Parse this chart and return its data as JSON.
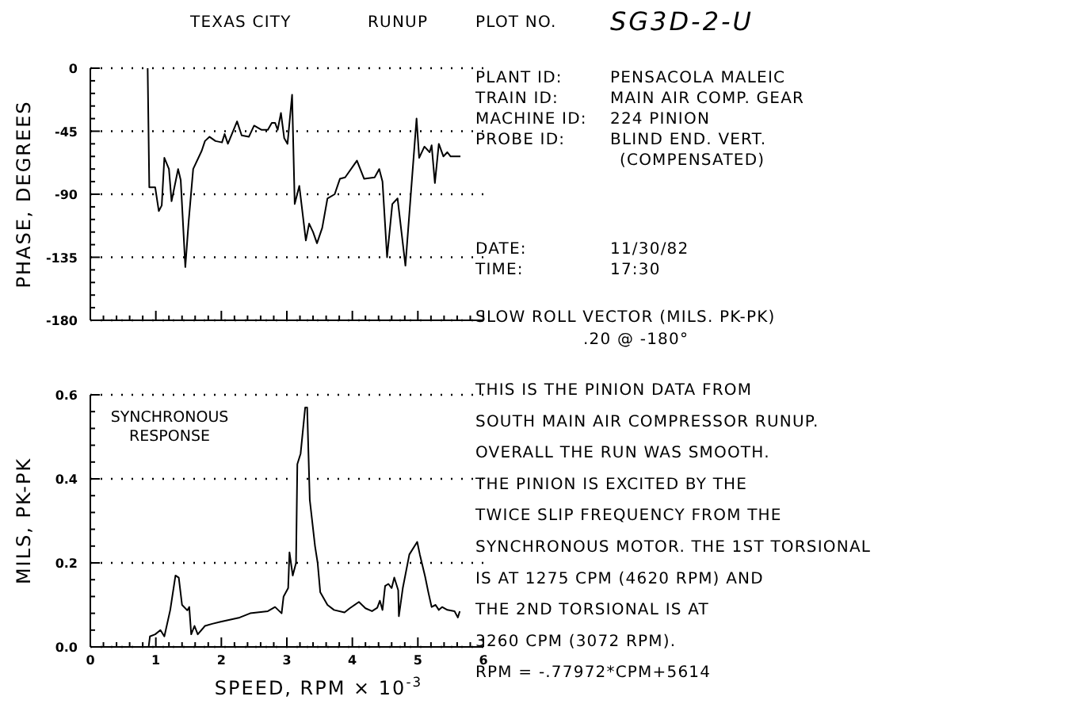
{
  "chart_data": [
    {
      "type": "line",
      "ylabel": "PHASE, DEGREES",
      "xlim": [
        0,
        6
      ],
      "xticks": [
        0,
        1,
        2,
        3,
        4,
        5,
        6
      ],
      "ylim": [
        -180,
        0
      ],
      "yticks": [
        -180,
        -135,
        -90,
        -45,
        0
      ],
      "tick_labels": "y",
      "grid": "y",
      "marker": "none",
      "line_style": "solid",
      "series": [
        {
          "color": "#000000",
          "x": [
            0.875,
            0.9,
            0.99,
            1.045,
            1.09,
            1.13,
            1.2,
            1.24,
            1.34,
            1.38,
            1.45,
            1.5,
            1.57,
            1.7,
            1.75,
            1.82,
            1.91,
            2.01,
            2.05,
            2.1,
            2.24,
            2.31,
            2.42,
            2.5,
            2.61,
            2.71,
            2.77,
            2.82,
            2.86,
            2.91,
            2.96,
            3.01,
            3.08,
            3.12,
            3.19,
            3.29,
            3.34,
            3.4,
            3.46,
            3.54,
            3.62,
            3.73,
            3.81,
            3.89,
            4.07,
            4.18,
            4.34,
            4.41,
            4.46,
            4.53,
            4.61,
            4.69,
            4.81,
            4.98,
            5.02,
            5.1,
            5.18,
            5.21,
            5.26,
            5.32,
            5.39,
            5.45,
            5.5,
            5.65
          ],
          "values": [
            0,
            -85,
            -85,
            -102,
            -98,
            -64,
            -72,
            -95,
            -72,
            -80,
            -142,
            -110,
            -72,
            -59,
            -52,
            -49,
            -52,
            -53,
            -47,
            -54,
            -38,
            -48,
            -49,
            -41,
            -44,
            -44,
            -39,
            -39,
            -44,
            -32,
            -50,
            -54,
            -19,
            -97,
            -84,
            -123,
            -111,
            -117,
            -125,
            -114,
            -93,
            -90,
            -79,
            -78,
            -66,
            -79,
            -78,
            -72,
            -81,
            -135,
            -97,
            -93,
            -141,
            -36,
            -64,
            -56,
            -60,
            -55,
            -82,
            -54,
            -63,
            -60,
            -63,
            -63
          ]
        }
      ]
    },
    {
      "type": "line",
      "ylabel": "MILS, PK-PK",
      "xlabel": "SPEED, RPM × 10$^{-3}$",
      "xlim": [
        0,
        6
      ],
      "xticks": [
        0,
        1,
        2,
        3,
        4,
        5,
        6
      ],
      "ylim": [
        0,
        0.6
      ],
      "yticks": [
        {
          "value": 0,
          "label": "0.0"
        },
        {
          "value": 0.2,
          "label": "0.2"
        },
        {
          "value": 0.4,
          "label": "0.4"
        },
        {
          "value": 0.6,
          "label": "0.6"
        }
      ],
      "grid": "y",
      "marker": "none",
      "line_style": "solid",
      "annotations": [
        "SYNCHRONOUS RESPONSE"
      ],
      "series": [
        {
          "color": "#000000",
          "x": [
            0.89,
            0.91,
            0.99,
            1.07,
            1.13,
            1.22,
            1.3,
            1.35,
            1.4,
            1.48,
            1.51,
            1.54,
            1.59,
            1.64,
            1.75,
            1.86,
            1.99,
            2.28,
            2.44,
            2.71,
            2.82,
            2.92,
            2.95,
            3.02,
            3.04,
            3.09,
            3.14,
            3.16,
            3.21,
            3.28,
            3.31,
            3.35,
            3.43,
            3.47,
            3.51,
            3.62,
            3.72,
            3.88,
            3.96,
            4.1,
            4.2,
            4.3,
            4.38,
            4.42,
            4.46,
            4.5,
            4.55,
            4.6,
            4.64,
            4.7,
            4.71,
            4.77,
            4.87,
            4.99,
            5.03,
            5.11,
            5.16,
            5.21,
            5.27,
            5.32,
            5.37,
            5.45,
            5.56,
            5.61,
            5.64
          ],
          "values": [
            0,
            0.025,
            0.03,
            0.04,
            0.025,
            0.088,
            0.17,
            0.165,
            0.1,
            0.087,
            0.095,
            0.03,
            0.05,
            0.03,
            0.05,
            0.055,
            0.06,
            0.07,
            0.08,
            0.085,
            0.095,
            0.08,
            0.12,
            0.14,
            0.225,
            0.17,
            0.2,
            0.435,
            0.46,
            0.57,
            0.57,
            0.35,
            0.24,
            0.2,
            0.13,
            0.1,
            0.088,
            0.082,
            0.092,
            0.107,
            0.092,
            0.085,
            0.093,
            0.11,
            0.088,
            0.145,
            0.15,
            0.14,
            0.165,
            0.135,
            0.073,
            0.14,
            0.22,
            0.25,
            0.22,
            0.168,
            0.13,
            0.095,
            0.1,
            0.088,
            0.095,
            0.088,
            0.085,
            0.07,
            0.085
          ]
        }
      ]
    },
    {
      "type": "other",
      "annotations": [
        "TEXAS CITY",
        "RUNUP",
        "PLOT NO.",
        "SG3D-2-U",
        "PLANT ID:",
        "PENSACOLA MALEIC",
        "TRAIN ID:",
        "MAIN AIR COMP. GEAR",
        "MACHINE ID:",
        "224 PINION",
        "PROBE ID:",
        "BLIND END. VERT.",
        "(COMPENSATED)",
        "DATE:",
        "11/30/82",
        "TIME:",
        "17:30",
        "SLOW ROLL VECTOR (MILS. PK-PK)",
        ".20 @ -180°",
        "THIS IS THE PINION DATA FROM",
        "SOUTH MAIN AIR COMPRESSOR RUNUP.",
        "OVERALL THE RUN WAS SMOOTH.",
        "THE PINION IS EXCITED BY THE",
        "TWICE SLIP FREQUENCY FROM THE",
        "SYNCHRONOUS MOTOR. THE 1ST TORSIONAL",
        "IS AT 1275 CPM (4620 RPM) AND",
        "THE 2ND TORSIONAL IS AT",
        "3260 CPM (3072 RPM).",
        "RPM = -.77972*CPM+5614"
      ]
    }
  ]
}
